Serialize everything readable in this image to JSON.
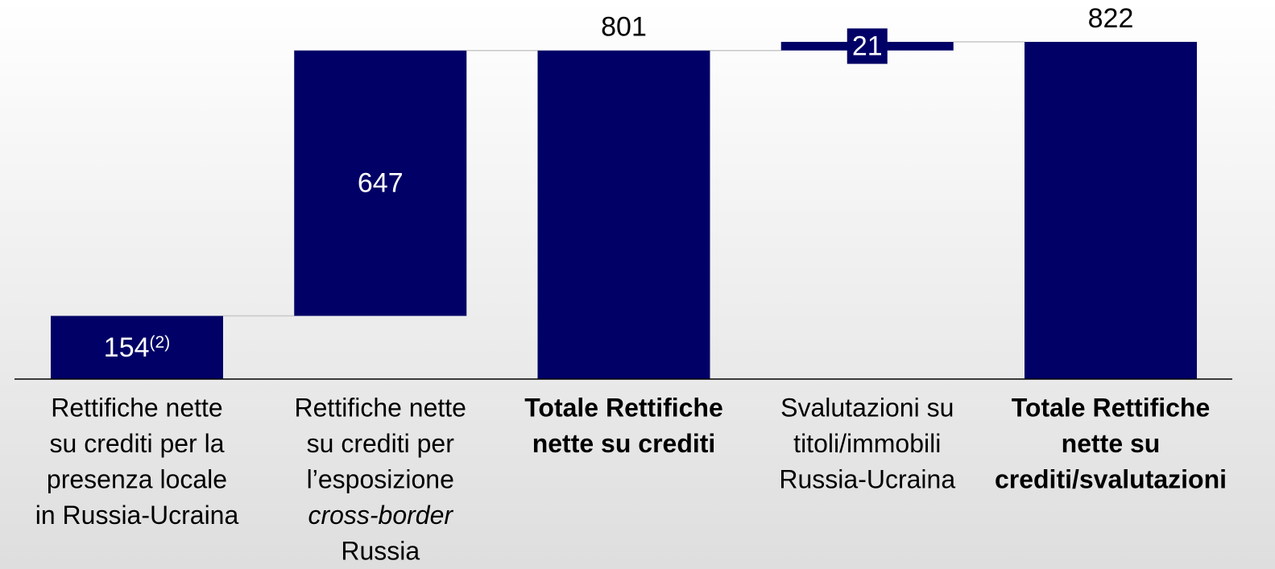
{
  "chart_data": {
    "type": "waterfall",
    "categories": [
      [
        "Rettifiche nette",
        "su crediti per la",
        "presenza locale",
        "in Russia-Ucraina"
      ],
      [
        "Rettifiche nette",
        "su crediti per",
        "l’esposizione",
        {
          "text": "cross-border",
          "italic": true
        },
        "Russia"
      ],
      [
        "Totale Rettifiche",
        "nette su crediti"
      ],
      [
        "Svalutazioni su",
        "titoli/immobili",
        "Russia-Ucraina"
      ],
      [
        "Totale Rettifiche",
        "nette su",
        "crediti/svalutazioni"
      ]
    ],
    "values": [
      154,
      647,
      801,
      21,
      822
    ],
    "value_notes": [
      "(2)",
      null,
      null,
      null,
      null
    ],
    "measure": [
      "relative",
      "relative",
      "total",
      "relative",
      "total"
    ],
    "bold": [
      false,
      false,
      true,
      false,
      true
    ],
    "color": "#000066"
  }
}
